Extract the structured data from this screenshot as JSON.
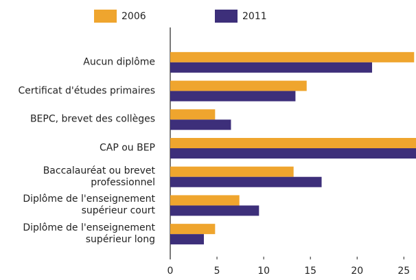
{
  "chart_data": {
    "type": "bar",
    "orientation": "horizontal",
    "categories": [
      "Aucun diplôme",
      "Certificat d'études primaires",
      "BEPC, brevet des collèges",
      "CAP ou BEP",
      "Baccalauréat ou brevet professionnel",
      "Diplôme de l'enseignement supérieur court",
      "Diplôme de l'enseignement supérieur long"
    ],
    "series": [
      {
        "name": "2006",
        "color": "#efa52e",
        "values": [
          26.1,
          14.6,
          4.8,
          27,
          13.2,
          7.4,
          4.8
        ]
      },
      {
        "name": "2011",
        "color": "#3d2f7a",
        "values": [
          21.6,
          13.4,
          6.5,
          26.8,
          16.2,
          9.5,
          3.6
        ]
      }
    ],
    "xlim": [
      0,
      26.3
    ],
    "xticks": [
      0,
      5,
      10,
      15,
      20,
      25
    ]
  }
}
